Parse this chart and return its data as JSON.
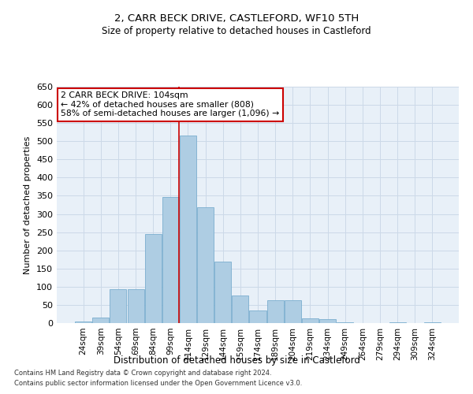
{
  "title1": "2, CARR BECK DRIVE, CASTLEFORD, WF10 5TH",
  "title2": "Size of property relative to detached houses in Castleford",
  "xlabel": "Distribution of detached houses by size in Castleford",
  "ylabel": "Number of detached properties",
  "categories": [
    "24sqm",
    "39sqm",
    "54sqm",
    "69sqm",
    "84sqm",
    "99sqm",
    "114sqm",
    "129sqm",
    "144sqm",
    "159sqm",
    "174sqm",
    "189sqm",
    "204sqm",
    "219sqm",
    "234sqm",
    "249sqm",
    "264sqm",
    "279sqm",
    "294sqm",
    "309sqm",
    "324sqm"
  ],
  "values": [
    5,
    15,
    93,
    93,
    245,
    347,
    515,
    318,
    170,
    75,
    35,
    63,
    63,
    12,
    10,
    3,
    0,
    0,
    2,
    0,
    3
  ],
  "bar_color": "#aecde3",
  "bar_edge_color": "#7aaecf",
  "vline_color": "#cc0000",
  "annotation_text": "2 CARR BECK DRIVE: 104sqm\n← 42% of detached houses are smaller (808)\n58% of semi-detached houses are larger (1,096) →",
  "annotation_box_color": "#ffffff",
  "annotation_box_edge": "#cc0000",
  "grid_color": "#ccd9e8",
  "background_color": "#e8f0f8",
  "footer1": "Contains HM Land Registry data © Crown copyright and database right 2024.",
  "footer2": "Contains public sector information licensed under the Open Government Licence v3.0.",
  "ylim": [
    0,
    650
  ],
  "yticks": [
    0,
    50,
    100,
    150,
    200,
    250,
    300,
    350,
    400,
    450,
    500,
    550,
    600,
    650
  ]
}
